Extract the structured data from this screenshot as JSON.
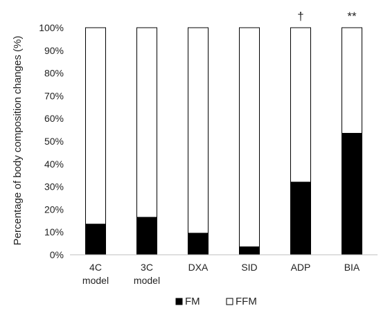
{
  "chart_data": {
    "type": "bar",
    "stacked": true,
    "percent_stacked": true,
    "title": "",
    "xlabel": "",
    "ylabel": "Percentage of body composition changes (%)",
    "ylim": [
      0,
      100
    ],
    "yticks": [
      "0%",
      "10%",
      "20%",
      "30%",
      "40%",
      "50%",
      "60%",
      "70%",
      "80%",
      "90%",
      "100%"
    ],
    "grid": false,
    "legend_position": "bottom",
    "categories": [
      [
        "4C",
        "model"
      ],
      [
        "3C",
        "model"
      ],
      [
        "DXA"
      ],
      [
        "SID"
      ],
      [
        "ADP"
      ],
      [
        "BIA"
      ]
    ],
    "series": [
      {
        "name": "FM",
        "color": "#000000",
        "values": [
          13.5,
          16.5,
          9.5,
          3.5,
          32,
          53.5
        ]
      },
      {
        "name": "FFM",
        "color": "#ffffff",
        "values": [
          86.5,
          83.5,
          90.5,
          96.5,
          68,
          46.5
        ]
      }
    ],
    "annotations": [
      "",
      "",
      "",
      "",
      "†",
      "**"
    ]
  }
}
